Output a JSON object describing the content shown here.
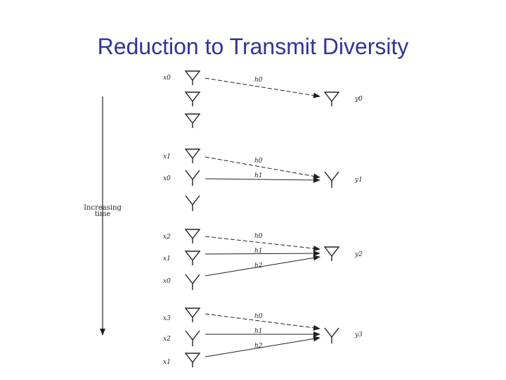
{
  "slide": {
    "title": "Reduction to Transmit Diversity"
  },
  "diagram": {
    "time_axis_label": [
      "Increasing",
      "time"
    ],
    "groups": [
      {
        "tx_labels": [
          "x0"
        ],
        "gains": [
          "h0"
        ],
        "rx_label": "y0"
      },
      {
        "tx_labels": [
          "x1",
          "x0"
        ],
        "gains": [
          "h0",
          "h1"
        ],
        "rx_label": "y1"
      },
      {
        "tx_labels": [
          "x2",
          "x1",
          "x0"
        ],
        "gains": [
          "h0",
          "h1",
          "h2"
        ],
        "rx_label": "y2"
      },
      {
        "tx_labels": [
          "x3",
          "x2",
          "x1"
        ],
        "gains": [
          "h0",
          "h1",
          "h2"
        ],
        "rx_label": "y3"
      }
    ]
  }
}
